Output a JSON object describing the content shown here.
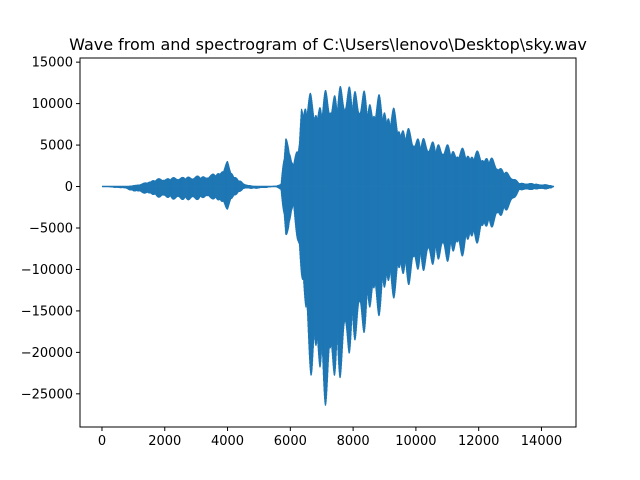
{
  "chart_data": {
    "type": "line",
    "title": "Wave from and spectrogram of C:\\Users\\lenovo\\Desktop\\sky.wav",
    "xlabel": "",
    "ylabel": "",
    "xlim": [
      -700,
      15100
    ],
    "ylim": [
      -29000,
      15500
    ],
    "grid": false,
    "x_ticks": [
      0,
      2000,
      4000,
      6000,
      8000,
      10000,
      12000,
      14000
    ],
    "x_tick_labels": [
      "0",
      "2000",
      "4000",
      "6000",
      "8000",
      "10000",
      "12000",
      "14000"
    ],
    "y_ticks": [
      15000,
      10000,
      5000,
      0,
      -5000,
      -10000,
      -15000,
      -20000,
      -25000
    ],
    "y_tick_labels": [
      "15000",
      "10000",
      "5000",
      "0",
      "−5000",
      "−10000",
      "−15000",
      "−20000",
      "−25000"
    ],
    "series": [
      {
        "name": "waveform",
        "color": "#1f77b4",
        "envelope": [
          {
            "x": 0,
            "max": 0,
            "min": 0
          },
          {
            "x": 800,
            "max": 0,
            "min": -300
          },
          {
            "x": 1000,
            "max": 200,
            "min": -700
          },
          {
            "x": 1300,
            "max": 400,
            "min": -800
          },
          {
            "x": 1600,
            "max": 900,
            "min": -1200
          },
          {
            "x": 2000,
            "max": 1100,
            "min": -1500
          },
          {
            "x": 2400,
            "max": 1200,
            "min": -1700
          },
          {
            "x": 2800,
            "max": 1300,
            "min": -1800
          },
          {
            "x": 3200,
            "max": 1400,
            "min": -1600
          },
          {
            "x": 3500,
            "max": 1500,
            "min": -1500
          },
          {
            "x": 3800,
            "max": 2200,
            "min": -2300
          },
          {
            "x": 4000,
            "max": 3100,
            "min": -2800
          },
          {
            "x": 4200,
            "max": 1600,
            "min": -1500
          },
          {
            "x": 4500,
            "max": 400,
            "min": -300
          },
          {
            "x": 4800,
            "max": 100,
            "min": -300
          },
          {
            "x": 5200,
            "max": 0,
            "min": -200
          },
          {
            "x": 5500,
            "max": 100,
            "min": 0
          },
          {
            "x": 5700,
            "max": 300,
            "min": -400
          },
          {
            "x": 5850,
            "max": 6800,
            "min": -6800
          },
          {
            "x": 5950,
            "max": 6000,
            "min": -6500
          },
          {
            "x": 6100,
            "max": 3000,
            "min": -2500
          },
          {
            "x": 6250,
            "max": 5000,
            "min": -8000
          },
          {
            "x": 6350,
            "max": 11500,
            "min": -13000
          },
          {
            "x": 6500,
            "max": 12000,
            "min": -19000
          },
          {
            "x": 6700,
            "max": 11000,
            "min": -24000
          },
          {
            "x": 7000,
            "max": 11500,
            "min": -26500
          },
          {
            "x": 7200,
            "max": 12000,
            "min": -27000
          },
          {
            "x": 7500,
            "max": 12500,
            "min": -25000
          },
          {
            "x": 7800,
            "max": 13000,
            "min": -22000
          },
          {
            "x": 8100,
            "max": 12500,
            "min": -20000
          },
          {
            "x": 8500,
            "max": 11500,
            "min": -17000
          },
          {
            "x": 9000,
            "max": 11000,
            "min": -15000
          },
          {
            "x": 9400,
            "max": 9000,
            "min": -13000
          },
          {
            "x": 9800,
            "max": 7000,
            "min": -12000
          },
          {
            "x": 10300,
            "max": 6000,
            "min": -10500
          },
          {
            "x": 10800,
            "max": 5500,
            "min": -9500
          },
          {
            "x": 11300,
            "max": 4800,
            "min": -9000
          },
          {
            "x": 11800,
            "max": 4500,
            "min": -7500
          },
          {
            "x": 12300,
            "max": 4000,
            "min": -5500
          },
          {
            "x": 12700,
            "max": 2500,
            "min": -4000
          },
          {
            "x": 13000,
            "max": 1500,
            "min": -2500
          },
          {
            "x": 13300,
            "max": 500,
            "min": -500
          },
          {
            "x": 13800,
            "max": 400,
            "min": -400
          },
          {
            "x": 14300,
            "max": 200,
            "min": -300
          },
          {
            "x": 14400,
            "max": 0,
            "min": 0
          }
        ]
      }
    ]
  }
}
